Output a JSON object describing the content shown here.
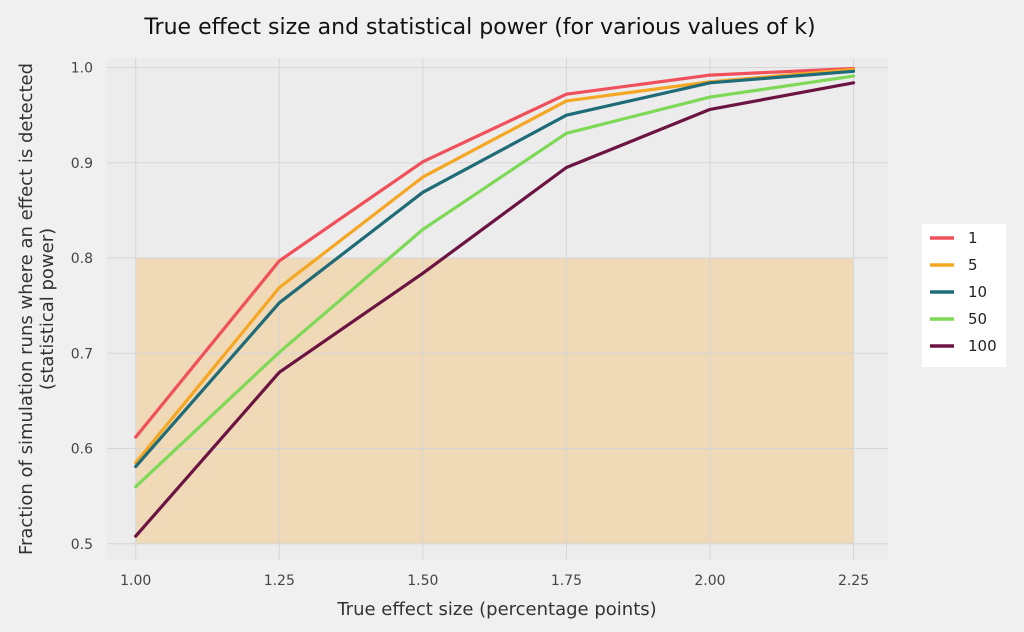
{
  "chart_data": {
    "type": "line",
    "title": "True effect size and statistical power (for various values of k)",
    "xlabel": "True effect size (percentage points)",
    "ylabel_lines": [
      "Fraction of simulation runs where an effect is detected",
      "(statistical power)"
    ],
    "x": [
      1.0,
      1.25,
      1.5,
      1.75,
      2.0,
      2.25
    ],
    "x_tick_labels": [
      "1.00",
      "1.25",
      "1.50",
      "1.75",
      "2.00",
      "2.25"
    ],
    "y_tick_values": [
      0.5,
      0.6,
      0.7,
      0.8,
      0.9,
      1.0
    ],
    "y_tick_labels": [
      "0.5",
      "0.6",
      "0.7",
      "0.8",
      "0.9",
      "1.0"
    ],
    "xlim": [
      0.95,
      2.31
    ],
    "ylim": [
      0.483,
      1.01
    ],
    "grid": true,
    "legend_position": "right",
    "shaded_region": {
      "x": [
        1.0,
        2.25
      ],
      "y": [
        0.5,
        0.8
      ],
      "color": "#f0d8b4"
    },
    "series": [
      {
        "name": "1",
        "color": "#f0505a",
        "values": [
          0.612,
          0.797,
          0.901,
          0.972,
          0.992,
          0.999
        ]
      },
      {
        "name": "5",
        "color": "#f5a623",
        "values": [
          0.585,
          0.769,
          0.885,
          0.965,
          0.985,
          0.998
        ]
      },
      {
        "name": "10",
        "color": "#1f6b78",
        "values": [
          0.581,
          0.753,
          0.869,
          0.95,
          0.984,
          0.996
        ]
      },
      {
        "name": "50",
        "color": "#7ed957",
        "values": [
          0.56,
          0.701,
          0.83,
          0.931,
          0.969,
          0.991
        ]
      },
      {
        "name": "100",
        "color": "#6b1442",
        "values": [
          0.508,
          0.68,
          0.784,
          0.895,
          0.956,
          0.984
        ]
      }
    ]
  }
}
